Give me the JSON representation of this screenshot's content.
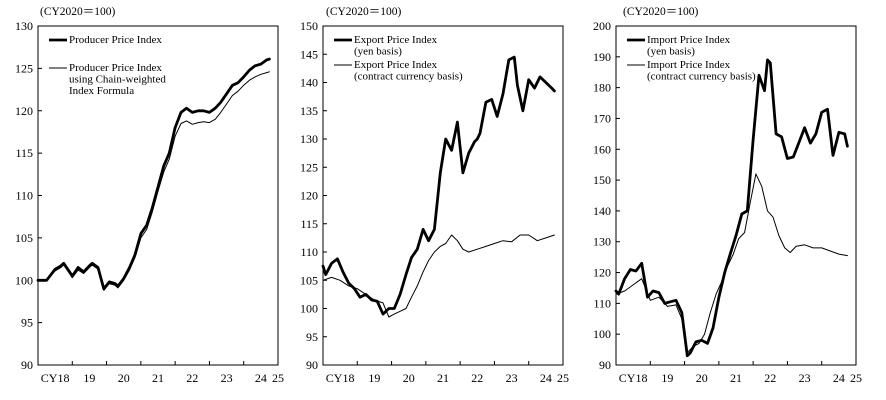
{
  "chart_data": [
    {
      "type": "line",
      "unit_label": "(CY2020＝100)",
      "ylim": [
        90,
        130
      ],
      "yticks": [
        90,
        95,
        100,
        105,
        110,
        115,
        120,
        125,
        130
      ],
      "xlim": [
        2018,
        2025
      ],
      "xticks": [
        {
          "x": 2018.5,
          "label": "CY18"
        },
        {
          "x": 2019.5,
          "label": "19"
        },
        {
          "x": 2020.5,
          "label": "20"
        },
        {
          "x": 2021.5,
          "label": "21"
        },
        {
          "x": 2022.5,
          "label": "22"
        },
        {
          "x": 2023.5,
          "label": "23"
        },
        {
          "x": 2024.5,
          "label": "24"
        },
        {
          "x": 2025.0,
          "label": "25"
        }
      ],
      "series": [
        {
          "name": "Producer Price Index",
          "legend_lines": [
            "Producer Price Index"
          ],
          "style": "thick",
          "x": [
            2018.0,
            2018.25,
            2018.5,
            2018.67,
            2018.75,
            2018.92,
            2019.0,
            2019.17,
            2019.33,
            2019.5,
            2019.58,
            2019.75,
            2019.92,
            2020.08,
            2020.25,
            2020.33,
            2020.5,
            2020.67,
            2020.83,
            2021.0,
            2021.17,
            2021.33,
            2021.5,
            2021.67,
            2021.83,
            2022.0,
            2022.17,
            2022.33,
            2022.5,
            2022.67,
            2022.83,
            2023.0,
            2023.17,
            2023.33,
            2023.5,
            2023.67,
            2023.83,
            2024.0,
            2024.17,
            2024.33,
            2024.5,
            2024.67,
            2024.75
          ],
          "values": [
            100.0,
            100.0,
            101.3,
            101.7,
            102.0,
            101.0,
            100.5,
            101.5,
            101.0,
            101.7,
            102.0,
            101.5,
            99.0,
            99.8,
            99.6,
            99.3,
            100.2,
            101.5,
            103.0,
            105.5,
            106.5,
            108.5,
            111.0,
            113.5,
            115.0,
            118.0,
            119.8,
            120.3,
            119.8,
            120.0,
            120.0,
            119.8,
            120.3,
            121.0,
            122.0,
            123.0,
            123.3,
            124.0,
            124.8,
            125.3,
            125.5,
            126.0,
            126.1
          ]
        },
        {
          "name": "Producer Price Index using Chain-weighted Index Formula",
          "legend_lines": [
            "Producer Price Index",
            "using Chain-weighted",
            "Index Formula"
          ],
          "style": "thin",
          "x": [
            2018.0,
            2018.25,
            2018.5,
            2018.67,
            2018.75,
            2018.92,
            2019.0,
            2019.17,
            2019.33,
            2019.5,
            2019.58,
            2019.75,
            2019.92,
            2020.08,
            2020.25,
            2020.33,
            2020.5,
            2020.67,
            2020.83,
            2021.0,
            2021.17,
            2021.33,
            2021.5,
            2021.67,
            2021.83,
            2022.0,
            2022.17,
            2022.33,
            2022.5,
            2022.67,
            2022.83,
            2023.0,
            2023.17,
            2023.33,
            2023.5,
            2023.67,
            2023.83,
            2024.0,
            2024.17,
            2024.33,
            2024.5,
            2024.67,
            2024.75
          ],
          "values": [
            100.0,
            100.0,
            101.1,
            101.5,
            101.8,
            100.8,
            100.3,
            101.2,
            100.8,
            101.5,
            101.8,
            101.3,
            98.8,
            99.6,
            99.4,
            99.1,
            100.0,
            101.2,
            102.7,
            105.0,
            106.0,
            108.0,
            110.5,
            112.8,
            114.3,
            117.0,
            118.5,
            118.8,
            118.4,
            118.6,
            118.7,
            118.6,
            119.0,
            119.8,
            120.8,
            121.8,
            122.3,
            123.0,
            123.6,
            124.0,
            124.3,
            124.5,
            124.6
          ]
        }
      ]
    },
    {
      "type": "line",
      "unit_label": "(CY2020＝100)",
      "ylim": [
        90,
        150
      ],
      "yticks": [
        90,
        95,
        100,
        105,
        110,
        115,
        120,
        125,
        130,
        135,
        140,
        145,
        150
      ],
      "xlim": [
        2018,
        2025
      ],
      "xticks": [
        {
          "x": 2018.5,
          "label": "CY18"
        },
        {
          "x": 2019.5,
          "label": "19"
        },
        {
          "x": 2020.5,
          "label": "20"
        },
        {
          "x": 2021.5,
          "label": "21"
        },
        {
          "x": 2022.5,
          "label": "22"
        },
        {
          "x": 2023.5,
          "label": "23"
        },
        {
          "x": 2024.5,
          "label": "24"
        },
        {
          "x": 2025.0,
          "label": "25"
        }
      ],
      "series": [
        {
          "name": "Export Price Index (yen basis)",
          "legend_lines": [
            "Export Price Index",
            "(yen basis)"
          ],
          "style": "thick",
          "x": [
            2018.0,
            2018.08,
            2018.25,
            2018.42,
            2018.58,
            2018.75,
            2018.92,
            2019.08,
            2019.25,
            2019.42,
            2019.58,
            2019.75,
            2019.92,
            2020.08,
            2020.25,
            2020.42,
            2020.58,
            2020.75,
            2020.92,
            2021.08,
            2021.25,
            2021.42,
            2021.58,
            2021.75,
            2021.92,
            2022.08,
            2022.25,
            2022.42,
            2022.5,
            2022.58,
            2022.75,
            2022.92,
            2023.08,
            2023.25,
            2023.42,
            2023.58,
            2023.67,
            2023.83,
            2024.0,
            2024.17,
            2024.33,
            2024.5,
            2024.67,
            2024.75
          ],
          "values": [
            107.5,
            106.0,
            108.0,
            108.8,
            106.5,
            104.5,
            103.5,
            102.0,
            102.5,
            101.5,
            101.3,
            99.0,
            100.0,
            100.0,
            102.5,
            106.0,
            109.0,
            110.5,
            114.0,
            112.0,
            114.0,
            124.0,
            130.0,
            128.0,
            133.0,
            124.0,
            127.5,
            129.5,
            130.0,
            131.0,
            136.5,
            137.0,
            134.0,
            138.0,
            144.0,
            144.5,
            139.5,
            135.0,
            140.5,
            139.0,
            141.0,
            140.0,
            139.0,
            138.5
          ]
        },
        {
          "name": "Export Price Index (contract currency basis)",
          "legend_lines": [
            "Export Price Index",
            "(contract currency basis)"
          ],
          "style": "thin",
          "x": [
            2018.0,
            2018.25,
            2018.5,
            2018.75,
            2019.0,
            2019.25,
            2019.5,
            2019.75,
            2019.92,
            2020.08,
            2020.25,
            2020.42,
            2020.58,
            2020.75,
            2020.92,
            2021.08,
            2021.25,
            2021.42,
            2021.58,
            2021.75,
            2021.92,
            2022.08,
            2022.25,
            2022.5,
            2022.75,
            2023.0,
            2023.25,
            2023.5,
            2023.75,
            2024.0,
            2024.25,
            2024.5,
            2024.75
          ],
          "values": [
            105.0,
            105.5,
            105.0,
            104.0,
            103.5,
            102.5,
            101.5,
            101.0,
            98.5,
            99.0,
            99.5,
            100.0,
            102.0,
            104.0,
            106.5,
            108.5,
            110.0,
            111.0,
            111.5,
            113.0,
            112.0,
            110.5,
            110.0,
            110.5,
            111.0,
            111.5,
            112.0,
            111.8,
            113.0,
            113.0,
            112.0,
            112.5,
            113.0
          ]
        }
      ]
    },
    {
      "type": "line",
      "unit_label": "(CY2020＝100)",
      "ylim": [
        90,
        200
      ],
      "yticks": [
        90,
        100,
        110,
        120,
        130,
        140,
        150,
        160,
        170,
        180,
        190,
        200
      ],
      "xlim": [
        2018,
        2025
      ],
      "xticks": [
        {
          "x": 2018.5,
          "label": "CY18"
        },
        {
          "x": 2019.5,
          "label": "19"
        },
        {
          "x": 2020.5,
          "label": "20"
        },
        {
          "x": 2021.5,
          "label": "21"
        },
        {
          "x": 2022.5,
          "label": "22"
        },
        {
          "x": 2023.5,
          "label": "23"
        },
        {
          "x": 2024.5,
          "label": "24"
        },
        {
          "x": 2025.0,
          "label": "25"
        }
      ],
      "series": [
        {
          "name": "Import Price Index (yen basis)",
          "legend_lines": [
            "Import Price Index",
            "(yen basis)"
          ],
          "style": "thick",
          "x": [
            2018.0,
            2018.08,
            2018.25,
            2018.42,
            2018.58,
            2018.75,
            2018.92,
            2019.08,
            2019.25,
            2019.42,
            2019.58,
            2019.75,
            2019.92,
            2020.08,
            2020.17,
            2020.33,
            2020.5,
            2020.67,
            2020.83,
            2021.0,
            2021.17,
            2021.33,
            2021.5,
            2021.67,
            2021.83,
            2022.0,
            2022.17,
            2022.33,
            2022.42,
            2022.5,
            2022.67,
            2022.83,
            2023.0,
            2023.17,
            2023.33,
            2023.5,
            2023.67,
            2023.83,
            2024.0,
            2024.17,
            2024.33,
            2024.5,
            2024.67,
            2024.75
          ],
          "values": [
            114.0,
            113.0,
            118.0,
            121.0,
            120.5,
            123.0,
            112.0,
            114.0,
            113.5,
            110.0,
            110.5,
            111.0,
            107.0,
            93.0,
            94.0,
            97.5,
            98.0,
            97.0,
            102.0,
            112.0,
            120.0,
            126.0,
            132.0,
            139.0,
            140.0,
            163.0,
            184.0,
            179.0,
            189.0,
            188.0,
            165.0,
            164.0,
            157.0,
            157.5,
            162.0,
            167.0,
            162.0,
            165.0,
            172.0,
            173.0,
            158.0,
            165.5,
            165.0,
            161.0
          ]
        },
        {
          "name": "Import Price Index (contract currency basis)",
          "legend_lines": [
            "Import Price Index",
            "(contract currency basis)"
          ],
          "style": "thin",
          "x": [
            2018.0,
            2018.25,
            2018.5,
            2018.75,
            2019.0,
            2019.25,
            2019.5,
            2019.75,
            2019.92,
            2020.08,
            2020.25,
            2020.42,
            2020.58,
            2020.75,
            2020.92,
            2021.08,
            2021.25,
            2021.42,
            2021.58,
            2021.75,
            2021.92,
            2022.08,
            2022.25,
            2022.42,
            2022.58,
            2022.75,
            2022.92,
            2023.08,
            2023.25,
            2023.5,
            2023.75,
            2024.0,
            2024.25,
            2024.5,
            2024.75
          ],
          "values": [
            113.0,
            114.0,
            116.0,
            118.0,
            111.0,
            112.0,
            109.0,
            109.5,
            105.0,
            94.0,
            96.0,
            97.0,
            100.0,
            107.0,
            113.0,
            117.0,
            122.0,
            126.0,
            131.0,
            133.0,
            143.0,
            152.0,
            148.0,
            140.0,
            138.0,
            132.0,
            128.0,
            126.5,
            128.5,
            129.0,
            128.0,
            128.0,
            127.0,
            126.0,
            125.5
          ]
        }
      ]
    }
  ]
}
